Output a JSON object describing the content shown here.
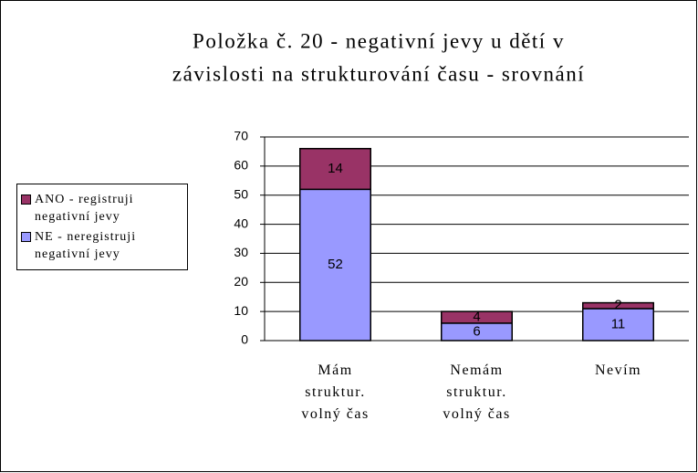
{
  "chart_data": {
    "type": "stacked_bar",
    "title": [
      "Položka č. 20 - negativní jevy u dětí v",
      "závislosti na strukturování času - srovnání"
    ],
    "categories": [
      [
        "Mám",
        "struktur.",
        "volný čas"
      ],
      [
        "Nemám",
        "struktur.",
        "volný čas"
      ],
      [
        "Nevím"
      ]
    ],
    "series": [
      {
        "name": "NE - neregistruji negativní jevy",
        "color": "#9999ff",
        "values": [
          52,
          6,
          11
        ]
      },
      {
        "name": "ANO - registruji negativní jevy",
        "color": "#993366",
        "values": [
          14,
          4,
          2
        ]
      }
    ],
    "ylim": [
      0,
      70
    ],
    "yticks": [
      0,
      10,
      20,
      30,
      40,
      50,
      60,
      70
    ],
    "grid": true,
    "legend": "left"
  }
}
